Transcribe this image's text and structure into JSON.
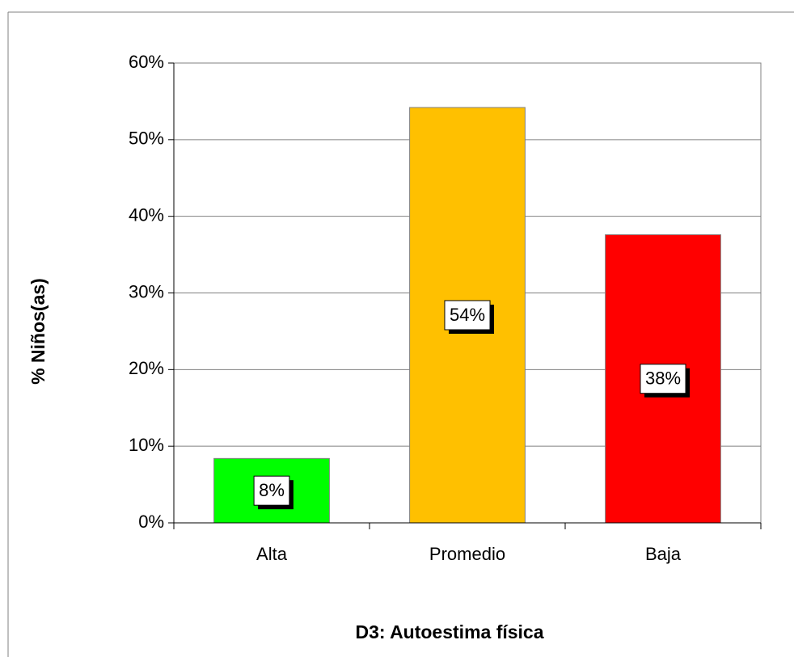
{
  "chart_data": {
    "type": "bar",
    "x_label": "D3: Autoestima física",
    "y_label": "% Niños(as)",
    "categories": [
      "Alta",
      "Promedio",
      "Baja"
    ],
    "values": [
      8.4,
      54.2,
      37.6
    ],
    "value_labels": [
      "8%",
      "54%",
      "38%"
    ],
    "colors": [
      "#00ff00",
      "#ffc000",
      "#ff0000"
    ],
    "ylim": [
      0,
      60
    ],
    "yticks": [
      {
        "value": 0,
        "label": "0%"
      },
      {
        "value": 10,
        "label": "10%"
      },
      {
        "value": 20,
        "label": "20%"
      },
      {
        "value": 30,
        "label": "30%"
      },
      {
        "value": 40,
        "label": "40%"
      },
      {
        "value": 50,
        "label": "50%"
      },
      {
        "value": 60,
        "label": "60%"
      }
    ],
    "grid": true
  }
}
